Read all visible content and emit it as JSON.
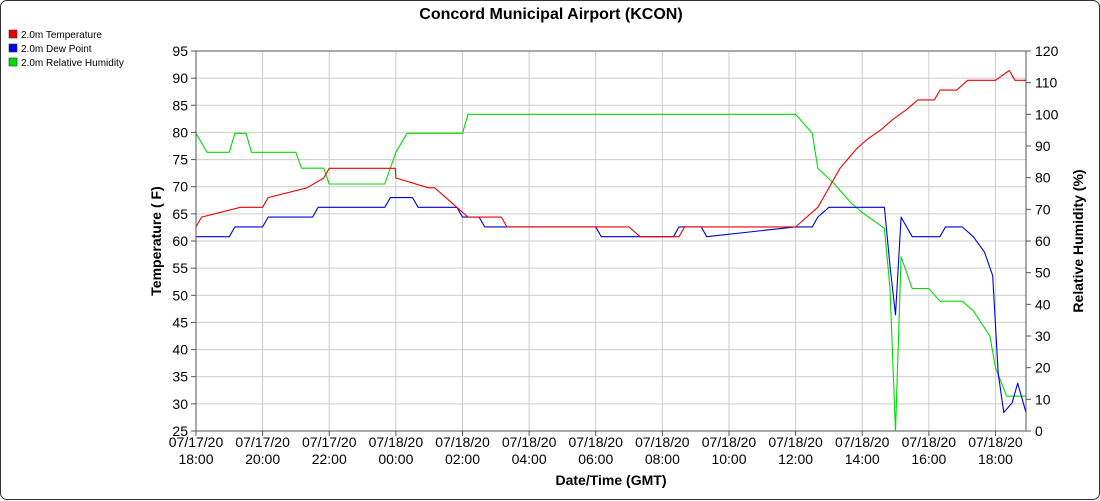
{
  "chart_data": {
    "type": "line",
    "title": "Concord Municipal Airport (KCON)",
    "xlabel": "Date/Time (GMT)",
    "ylabel_left": "Temperature ( F)",
    "ylabel_right": "Relative Humidity (%)",
    "ylim_left": [
      25,
      95
    ],
    "ylim_right": [
      0,
      120
    ],
    "x_range": [
      "07/17/20 18:00",
      "07/18/20 18:55"
    ],
    "grid": true,
    "legend_position": "top-left",
    "y_ticks_left": [
      "25",
      "30",
      "35",
      "40",
      "45",
      "50",
      "55",
      "60",
      "65",
      "70",
      "75",
      "80",
      "85",
      "90",
      "95"
    ],
    "y_ticks_right": [
      "0",
      "10",
      "20",
      "30",
      "40",
      "50",
      "60",
      "70",
      "80",
      "90",
      "100",
      "110",
      "120"
    ],
    "x_ticks": [
      {
        "date": "07/17/20",
        "time": "18:00"
      },
      {
        "date": "07/17/20",
        "time": "20:00"
      },
      {
        "date": "07/17/20",
        "time": "22:00"
      },
      {
        "date": "07/18/20",
        "time": "00:00"
      },
      {
        "date": "07/18/20",
        "time": "02:00"
      },
      {
        "date": "07/18/20",
        "time": "04:00"
      },
      {
        "date": "07/18/20",
        "time": "06:00"
      },
      {
        "date": "07/18/20",
        "time": "08:00"
      },
      {
        "date": "07/18/20",
        "time": "10:00"
      },
      {
        "date": "07/18/20",
        "time": "12:00"
      },
      {
        "date": "07/18/20",
        "time": "14:00"
      },
      {
        "date": "07/18/20",
        "time": "16:00"
      },
      {
        "date": "07/18/20",
        "time": "18:00"
      }
    ],
    "series": [
      {
        "name": "2.0m Temperature",
        "color": "#ee0000",
        "axis": "left",
        "points": [
          [
            "07/17/20 18:00",
            62.6
          ],
          [
            "07/17/20 18:10",
            64.4
          ],
          [
            "07/17/20 19:20",
            66.2
          ],
          [
            "07/17/20 20:00",
            66.2
          ],
          [
            "07/17/20 20:10",
            68.0
          ],
          [
            "07/17/20 21:20",
            69.8
          ],
          [
            "07/17/20 21:50",
            71.6
          ],
          [
            "07/17/20 22:00",
            73.4
          ],
          [
            "07/17/20 23:59",
            73.4
          ],
          [
            "07/18/20 00:00",
            71.6
          ],
          [
            "07/18/20 00:59",
            69.8
          ],
          [
            "07/18/20 01:10",
            69.8
          ],
          [
            "07/18/20 01:50",
            66.2
          ],
          [
            "07/18/20 02:10",
            64.4
          ],
          [
            "07/18/20 03:10",
            64.4
          ],
          [
            "07/18/20 03:20",
            62.6
          ],
          [
            "07/18/20 07:00",
            62.6
          ],
          [
            "07/18/20 07:20",
            60.8
          ],
          [
            "07/18/20 08:30",
            60.8
          ],
          [
            "07/18/20 08:40",
            62.6
          ],
          [
            "07/18/20 12:00",
            62.6
          ],
          [
            "07/18/20 12:20",
            64.4
          ],
          [
            "07/18/20 12:40",
            66.2
          ],
          [
            "07/18/20 12:50",
            68.0
          ],
          [
            "07/18/20 13:00",
            69.8
          ],
          [
            "07/18/20 13:10",
            71.6
          ],
          [
            "07/18/20 13:20",
            73.4
          ],
          [
            "07/18/20 13:35",
            75.2
          ],
          [
            "07/18/20 13:50",
            77.0
          ],
          [
            "07/18/20 14:10",
            78.8
          ],
          [
            "07/18/20 14:35",
            80.6
          ],
          [
            "07/18/20 14:55",
            82.4
          ],
          [
            "07/18/20 15:20",
            84.2
          ],
          [
            "07/18/20 15:40",
            86.0
          ],
          [
            "07/18/20 16:10",
            86.0
          ],
          [
            "07/18/20 16:20",
            87.8
          ],
          [
            "07/18/20 16:50",
            87.8
          ],
          [
            "07/18/20 17:10",
            89.6
          ],
          [
            "07/18/20 18:00",
            89.6
          ],
          [
            "07/18/20 18:25",
            91.4
          ],
          [
            "07/18/20 18:35",
            89.6
          ],
          [
            "07/18/20 18:55",
            89.6
          ]
        ]
      },
      {
        "name": "2.0m Dew Point",
        "color": "#0000dd",
        "axis": "left",
        "points": [
          [
            "07/17/20 18:00",
            60.8
          ],
          [
            "07/17/20 19:00",
            60.8
          ],
          [
            "07/17/20 19:10",
            62.6
          ],
          [
            "07/17/20 20:00",
            62.6
          ],
          [
            "07/17/20 20:10",
            64.4
          ],
          [
            "07/17/20 21:30",
            64.4
          ],
          [
            "07/17/20 21:40",
            66.2
          ],
          [
            "07/17/20 23:40",
            66.2
          ],
          [
            "07/17/20 23:50",
            68.0
          ],
          [
            "07/18/20 00:30",
            68.0
          ],
          [
            "07/18/20 00:40",
            66.2
          ],
          [
            "07/18/20 01:50",
            66.2
          ],
          [
            "07/18/20 02:00",
            64.4
          ],
          [
            "07/18/20 02:30",
            64.4
          ],
          [
            "07/18/20 02:40",
            62.6
          ],
          [
            "07/18/20 06:00",
            62.6
          ],
          [
            "07/18/20 06:10",
            60.8
          ],
          [
            "07/18/20 08:20",
            60.8
          ],
          [
            "07/18/20 08:30",
            62.6
          ],
          [
            "07/18/20 09:10",
            62.6
          ],
          [
            "07/18/20 09:20",
            60.8
          ],
          [
            "07/18/20 12:00",
            62.6
          ],
          [
            "07/18/20 12:30",
            62.6
          ],
          [
            "07/18/20 12:40",
            64.4
          ],
          [
            "07/18/20 13:00",
            66.2
          ],
          [
            "07/18/20 13:30",
            66.2
          ],
          [
            "07/18/20 14:00",
            66.2
          ],
          [
            "07/18/20 14:40",
            66.2
          ],
          [
            "07/18/20 14:50",
            55.4
          ],
          [
            "07/18/20 15:00",
            46.4
          ],
          [
            "07/18/20 15:10",
            64.4
          ],
          [
            "07/18/20 15:30",
            60.8
          ],
          [
            "07/18/20 16:20",
            60.8
          ],
          [
            "07/18/20 16:30",
            62.6
          ],
          [
            "07/18/20 17:00",
            62.6
          ],
          [
            "07/18/20 17:20",
            60.8
          ],
          [
            "07/18/20 17:40",
            58.0
          ],
          [
            "07/18/20 17:55",
            53.6
          ],
          [
            "07/18/20 18:05",
            35.6
          ],
          [
            "07/18/20 18:15",
            28.4
          ],
          [
            "07/18/20 18:30",
            30.2
          ],
          [
            "07/18/20 18:40",
            33.8
          ],
          [
            "07/18/20 18:55",
            28.4
          ]
        ]
      },
      {
        "name": "2.0m Relative Humidity",
        "color": "#00dd00",
        "axis": "right",
        "points": [
          [
            "07/17/20 18:00",
            94
          ],
          [
            "07/17/20 18:20",
            88
          ],
          [
            "07/17/20 19:00",
            88
          ],
          [
            "07/17/20 19:10",
            94
          ],
          [
            "07/17/20 19:30",
            94
          ],
          [
            "07/17/20 19:40",
            88
          ],
          [
            "07/17/20 21:00",
            88
          ],
          [
            "07/17/20 21:10",
            83
          ],
          [
            "07/17/20 21:50",
            83
          ],
          [
            "07/17/20 22:00",
            78
          ],
          [
            "07/17/20 23:40",
            78
          ],
          [
            "07/17/20 23:50",
            83
          ],
          [
            "07/18/20 00:00",
            88
          ],
          [
            "07/18/20 00:20",
            94
          ],
          [
            "07/18/20 01:00",
            94
          ],
          [
            "07/18/20 01:10",
            94
          ],
          [
            "07/18/20 02:00",
            94
          ],
          [
            "07/18/20 02:10",
            100
          ],
          [
            "07/18/20 03:20",
            100
          ],
          [
            "07/18/20 03:30",
            100
          ],
          [
            "07/18/20 12:00",
            100
          ],
          [
            "07/18/20 12:30",
            94
          ],
          [
            "07/18/20 12:40",
            83
          ],
          [
            "07/18/20 13:10",
            78
          ],
          [
            "07/18/20 13:40",
            72
          ],
          [
            "07/18/20 14:00",
            69
          ],
          [
            "07/18/20 14:40",
            64
          ],
          [
            "07/18/20 14:50",
            45
          ],
          [
            "07/18/20 15:00",
            0
          ],
          [
            "07/18/20 15:10",
            55
          ],
          [
            "07/18/20 15:30",
            45
          ],
          [
            "07/18/20 16:00",
            45
          ],
          [
            "07/18/20 16:20",
            41
          ],
          [
            "07/18/20 17:00",
            41
          ],
          [
            "07/18/20 17:20",
            38
          ],
          [
            "07/18/20 17:50",
            30
          ],
          [
            "07/18/20 18:00",
            20
          ],
          [
            "07/18/20 18:20",
            11
          ],
          [
            "07/18/20 18:55",
            11
          ]
        ]
      }
    ]
  }
}
